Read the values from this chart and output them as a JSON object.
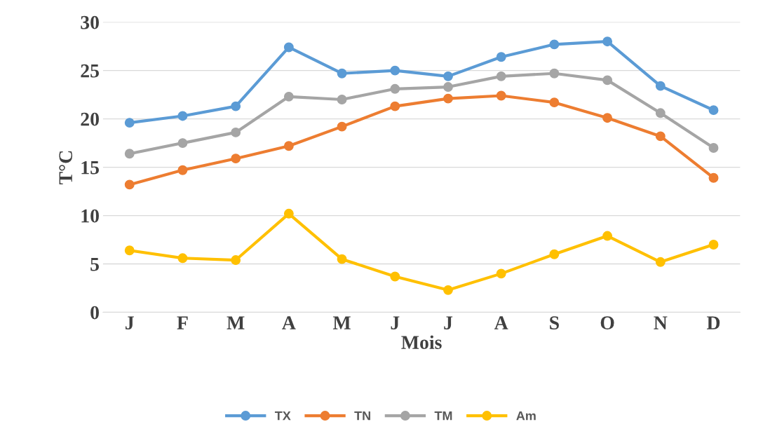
{
  "chart_data": {
    "type": "line",
    "xlabel": "Mois",
    "ylabel": "T°C",
    "categories": [
      "J",
      "F",
      "M",
      "A",
      "M",
      "J",
      "J",
      "A",
      "S",
      "O",
      "N",
      "D"
    ],
    "series": [
      {
        "name": "TX",
        "color": "#5b9bd5",
        "values": [
          19.6,
          20.3,
          21.3,
          27.4,
          24.7,
          25.0,
          24.4,
          26.4,
          27.7,
          28.0,
          23.4,
          20.9
        ]
      },
      {
        "name": "TN",
        "color": "#ed7d31",
        "values": [
          13.2,
          14.7,
          15.9,
          17.2,
          19.2,
          21.3,
          22.1,
          22.4,
          21.7,
          20.1,
          18.2,
          13.9
        ]
      },
      {
        "name": "TM",
        "color": "#a5a5a5",
        "values": [
          16.4,
          17.5,
          18.6,
          22.3,
          22.0,
          23.1,
          23.3,
          24.4,
          24.7,
          24.0,
          20.6,
          17.0
        ]
      },
      {
        "name": "Am",
        "color": "#ffc000",
        "values": [
          6.4,
          5.6,
          5.4,
          10.2,
          5.5,
          3.7,
          2.3,
          4.0,
          6.0,
          7.9,
          5.2,
          7.0
        ]
      }
    ],
    "ylim": [
      0,
      30
    ],
    "yticks": [
      0,
      5,
      10,
      15,
      20,
      25,
      30
    ],
    "grid": "y",
    "legend": "bottom",
    "marker": "circle",
    "line_style": "solid"
  }
}
